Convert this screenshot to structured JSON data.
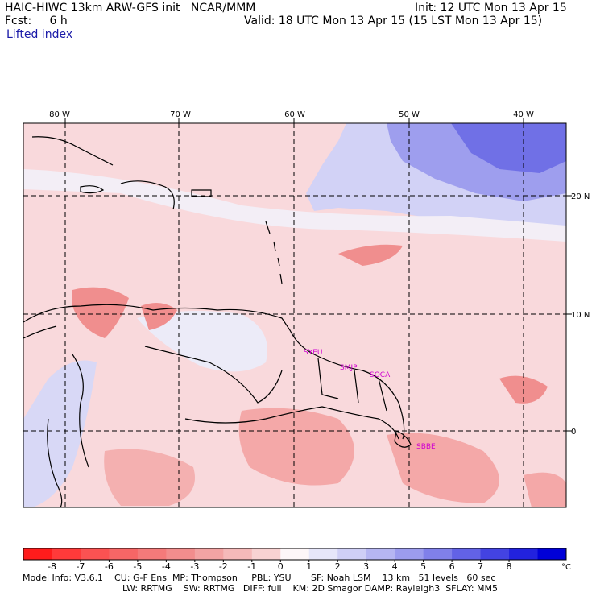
{
  "header": {
    "model_title": "HAIC-HIWC 13km ARW-GFS init",
    "org": "NCAR/MMM",
    "fcst_label": "Fcst:",
    "fcst_value": "6 h",
    "field_name": "Lifted index",
    "init_text": "Init: 12 UTC Mon 13 Apr 15",
    "valid_text": "Valid: 18 UTC Mon 13 Apr 15 (15 LST Mon 13 Apr 15)"
  },
  "map": {
    "lon_labels": [
      {
        "lon": -80,
        "text": "80 W"
      },
      {
        "lon": -70,
        "text": "70 W"
      },
      {
        "lon": -60,
        "text": "60 W"
      },
      {
        "lon": -50,
        "text": "50 W"
      },
      {
        "lon": -40,
        "text": "40 W"
      }
    ],
    "lat_labels": [
      {
        "lat": 20,
        "text": "20 N"
      },
      {
        "lat": 10,
        "text": "10 N"
      },
      {
        "lat": 0,
        "text": "0"
      }
    ],
    "stations": [
      "SYEU",
      "SMJP",
      "SOCA",
      "SBBE"
    ],
    "colors": {
      "strong_neg": "#e83a3a",
      "mod_neg": "#f08888",
      "weak_neg": "#f7b8b8",
      "very_weak_neg": "#fbdcdc",
      "neutral": "#f6f2f6",
      "weak_pos": "#c8c8f4",
      "mod_pos": "#9898ee",
      "strong_pos": "#5a5ae2",
      "station": "#d000d0"
    }
  },
  "colorbar": {
    "labels": [
      "-8",
      "-7",
      "-6",
      "-5",
      "-4",
      "-3",
      "-2",
      "-1",
      "0",
      "1",
      "2",
      "3",
      "4",
      "5",
      "6",
      "7",
      "8"
    ],
    "unit": "°C",
    "colors": [
      "#ff1c1c",
      "#ff3a3a",
      "#fb5252",
      "#f76666",
      "#f47a7a",
      "#f28d8d",
      "#f3a3a3",
      "#f5b9b9",
      "#f8d2d2",
      "#fdf6f8",
      "#e6e6fa",
      "#cfcff6",
      "#b6b6f2",
      "#9c9cee",
      "#8080ea",
      "#6262e6",
      "#4343e2",
      "#2222de",
      "#0000d8"
    ]
  },
  "info": {
    "line1": "Model Info: V3.6.1    CU: G-F Ens  MP: Thompson     PBL: YSU       SF: Noah LSM    13 km   51 levels   60 sec",
    "line2": "LW: RRTMG    SW: RRTMG   DIFF: full    KM: 2D Smagor DAMP: Rayleigh3  SFLAY: MM5"
  }
}
